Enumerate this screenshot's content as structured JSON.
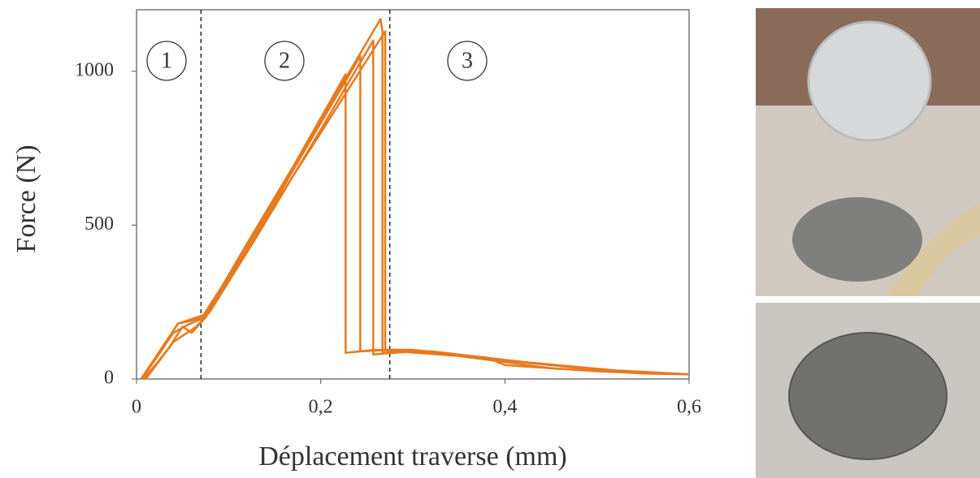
{
  "chart_data": {
    "type": "line",
    "x_label": "Déplacement traverse (mm)",
    "y_label": "Force (N)",
    "xlim": [
      0,
      0.6
    ],
    "ylim": [
      0,
      1200
    ],
    "xticks": [
      0,
      {
        "value": 0.2,
        "label": "0,2"
      },
      {
        "value": 0.4,
        "label": "0,4"
      },
      {
        "value": 0.6,
        "label": "0,6"
      }
    ],
    "yticks": [
      0,
      500,
      1000
    ],
    "grid": false,
    "vlines": [
      0.07,
      0.275
    ],
    "annotations": [
      "1",
      "2",
      "3"
    ],
    "series": [
      {
        "color": "#e8791e",
        "x": [
          0.005,
          0.03,
          0.045,
          0.055,
          0.075,
          0.12,
          0.17,
          0.227,
          0.227,
          0.26,
          0.35,
          0.45,
          0.55,
          0.6
        ],
        "values": [
          0,
          110,
          180,
          190,
          210,
          440,
          690,
          990,
          85,
          95,
          75,
          35,
          18,
          15
        ]
      },
      {
        "color": "#e8791e",
        "x": [
          0.008,
          0.035,
          0.05,
          0.06,
          0.075,
          0.12,
          0.18,
          0.243,
          0.243,
          0.28,
          0.38,
          0.4,
          0.5,
          0.6
        ],
        "values": [
          0,
          100,
          170,
          150,
          200,
          420,
          730,
          1050,
          90,
          95,
          70,
          45,
          25,
          15
        ]
      },
      {
        "color": "#e8791e",
        "x": [
          0.01,
          0.04,
          0.055,
          0.065,
          0.08,
          0.13,
          0.2,
          0.257,
          0.257,
          0.3,
          0.4,
          0.5,
          0.6
        ],
        "values": [
          0,
          120,
          150,
          170,
          220,
          460,
          810,
          1100,
          80,
          90,
          60,
          30,
          15
        ]
      },
      {
        "color": "#e8791e",
        "x": [
          0.005,
          0.045,
          0.06,
          0.075,
          0.13,
          0.2,
          0.265,
          0.267,
          0.267,
          0.32,
          0.42,
          0.52,
          0.6
        ],
        "values": [
          0,
          180,
          190,
          205,
          480,
          840,
          1170,
          1130,
          85,
          90,
          55,
          28,
          15
        ]
      },
      {
        "color": "#e8791e",
        "x": [
          0.006,
          0.04,
          0.055,
          0.07,
          0.125,
          0.2,
          0.27,
          0.27,
          0.3,
          0.39,
          0.5,
          0.6
        ],
        "values": [
          0,
          150,
          175,
          195,
          450,
          800,
          1130,
          95,
          95,
          65,
          30,
          15
        ]
      }
    ]
  }
}
